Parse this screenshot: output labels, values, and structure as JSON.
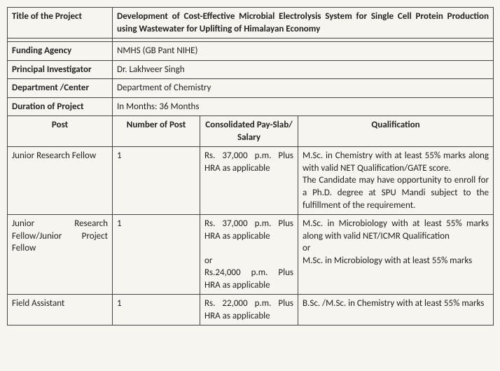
{
  "header": {
    "titleLabel": "Title of the Project",
    "titleValue": "Development of Cost-Effective Microbial Electrolysis System for Single Cell Protein Production using Wastewater for Uplifting of Himalayan Economy",
    "fundingLabel": "Funding Agency",
    "fundingValue": "NMHS (GB Pant NIHE)",
    "piLabel": "Principal Investigator",
    "piValue": "Dr. Lakhveer Singh",
    "deptLabel": "Department /Center",
    "deptValue": "Department of Chemistry",
    "durationLabel": "Duration of Project",
    "durationValue": "In Months: 36 Months"
  },
  "columns": {
    "post": "Post",
    "num": "Number of Post",
    "pay": "Consolidated Pay-Slab/ Salary",
    "qual": "Qualification"
  },
  "rows": [
    {
      "post": "Junior Research Fellow",
      "num": "1",
      "pay": "Rs. 37,000 p.m. Plus HRA as applicable",
      "qual": "M.Sc. in Chemistry with at least 55% marks along with valid NET Qualification/GATE score.\nThe Candidate may have opportunity to enroll for a Ph.D. degree at SPU Mandi subject to the fulfillment of the requirement."
    },
    {
      "post": "Junior Research Fellow/Junior Project Fellow",
      "num": "1",
      "pay": "Rs. 37,000 p.m. Plus HRA as applicable\n\nor\nRs.24,000 p.m. Plus HRA as applicable",
      "qual": "M.Sc. in Microbiology with at least 55% marks along with valid NET/ICMR Qualification\nor\nM.Sc. in Microbiology with at least 55% marks"
    },
    {
      "post": "Field Assistant",
      "num": "1",
      "pay": "Rs. 22,000 p.m. Plus HRA as applicable",
      "qual": "B.Sc. /M.Sc. in Chemistry with at least 55% marks"
    }
  ]
}
